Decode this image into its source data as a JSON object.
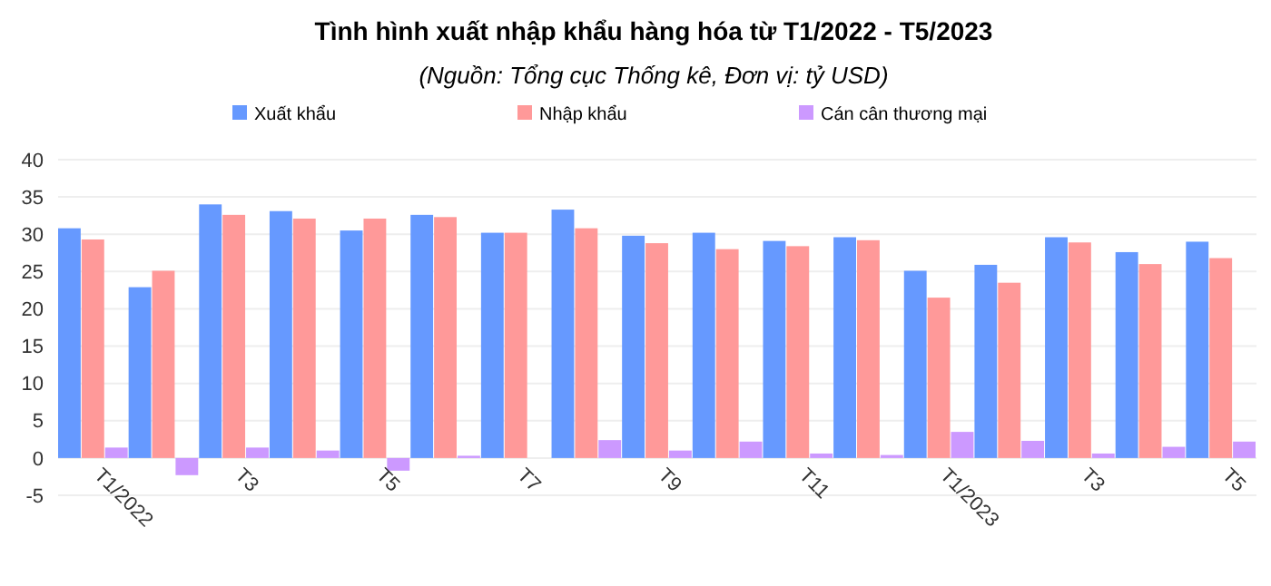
{
  "chart_data": {
    "type": "bar",
    "title": "Tình hình xuất nhập khẩu hàng hóa từ T1/2022 - T5/2023",
    "subtitle": "(Nguồn: Tổng cục Thống kê, Đơn vị: tỷ USD)",
    "categories": [
      "T1/2022",
      null,
      "T3",
      null,
      "T5",
      null,
      "T7",
      null,
      "T9",
      null,
      "T11",
      null,
      "T1/2023",
      null,
      "T3",
      null,
      "T5"
    ],
    "series": [
      {
        "name": "Xuất khẩu",
        "color": "#6699ff",
        "values": [
          30.8,
          22.9,
          34.0,
          33.1,
          30.5,
          32.6,
          30.2,
          33.3,
          29.8,
          30.2,
          29.1,
          29.6,
          25.1,
          25.9,
          29.6,
          27.6,
          29.0
        ]
      },
      {
        "name": "Nhập khẩu",
        "color": "#ff9999",
        "values": [
          29.3,
          25.1,
          32.6,
          32.1,
          32.1,
          32.3,
          30.2,
          30.8,
          28.8,
          28.0,
          28.4,
          29.2,
          21.5,
          23.5,
          28.9,
          26.0,
          26.8
        ]
      },
      {
        "name": "Cán cân thương mại",
        "color": "#cc99ff",
        "values": [
          1.4,
          -2.3,
          1.4,
          1.0,
          -1.7,
          0.3,
          0.0,
          2.4,
          1.0,
          2.2,
          0.6,
          0.4,
          3.5,
          2.3,
          0.6,
          1.5,
          2.2
        ]
      }
    ],
    "ylim": [
      -5,
      40
    ],
    "yticks": [
      -5,
      0,
      5,
      10,
      15,
      20,
      25,
      30,
      35,
      40
    ],
    "grid": "y",
    "legend": "top"
  }
}
